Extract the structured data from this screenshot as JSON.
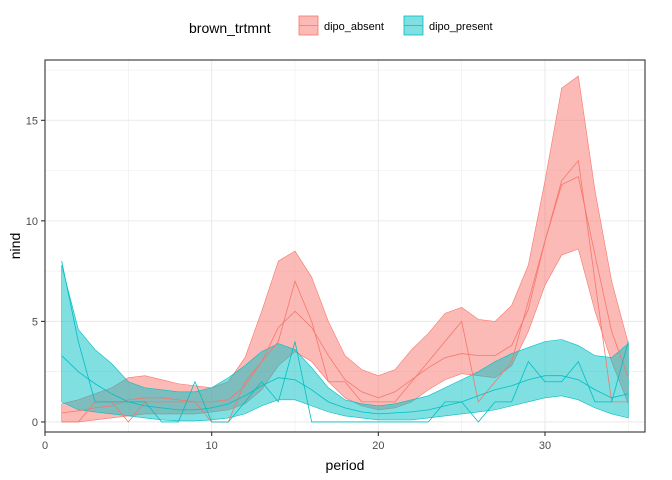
{
  "chart_data": {
    "type": "area",
    "xlabel": "period",
    "ylabel": "nind",
    "xlim": [
      0,
      36
    ],
    "ylim": [
      -0.5,
      18
    ],
    "x_ticks": [
      0,
      10,
      20,
      30
    ],
    "y_ticks": [
      0,
      5,
      10,
      15
    ],
    "grid": true,
    "legend": {
      "title": "brown_trtmnt",
      "position": "top",
      "entries": [
        "dipo_absent",
        "dipo_present"
      ]
    },
    "x": [
      1,
      2,
      3,
      4,
      5,
      6,
      7,
      8,
      9,
      10,
      11,
      12,
      13,
      14,
      15,
      16,
      17,
      18,
      19,
      20,
      21,
      22,
      23,
      24,
      25,
      26,
      27,
      28,
      29,
      30,
      31,
      32,
      33,
      34,
      35
    ],
    "series": [
      {
        "name": "dipo_absent",
        "color": "#F8766D",
        "ribbon_upper": [
          0.9,
          1.1,
          1.4,
          1.7,
          2.2,
          2.3,
          2.1,
          1.9,
          1.8,
          1.7,
          2.0,
          3.2,
          5.5,
          8.0,
          8.5,
          7.2,
          5.0,
          3.3,
          2.6,
          2.3,
          2.6,
          3.6,
          4.4,
          5.4,
          5.7,
          5.1,
          5.0,
          5.8,
          7.8,
          12.0,
          16.6,
          17.2,
          11.5,
          7.0,
          3.9
        ],
        "ribbon_lower": [
          0.0,
          0.0,
          0.1,
          0.2,
          0.3,
          0.4,
          0.4,
          0.4,
          0.4,
          0.5,
          0.6,
          0.9,
          1.6,
          2.8,
          3.5,
          3.0,
          2.0,
          1.2,
          0.8,
          0.6,
          0.7,
          1.0,
          1.6,
          2.1,
          2.4,
          2.3,
          2.2,
          2.8,
          4.5,
          6.8,
          8.3,
          8.6,
          5.5,
          3.0,
          0.9
        ],
        "mean": [
          0.45,
          0.55,
          0.7,
          0.8,
          1.1,
          1.2,
          1.2,
          1.1,
          1.0,
          1.0,
          1.1,
          1.8,
          3.0,
          4.7,
          5.5,
          4.7,
          3.3,
          2.1,
          1.5,
          1.2,
          1.5,
          2.1,
          2.7,
          3.2,
          3.4,
          3.3,
          3.3,
          3.8,
          5.6,
          9.0,
          11.8,
          12.2,
          8.3,
          4.5,
          2.2
        ],
        "observed": [
          0,
          0,
          1,
          1,
          0,
          1,
          1,
          1,
          1,
          0,
          0,
          2,
          3,
          4,
          7,
          5,
          2,
          2,
          1,
          1,
          1,
          2,
          3,
          4,
          5,
          1,
          2,
          3,
          6,
          9,
          12,
          13,
          7,
          1,
          1
        ]
      },
      {
        "name": "dipo_present",
        "color": "#00BFC4",
        "ribbon_upper": [
          7.8,
          4.6,
          3.6,
          2.9,
          2.0,
          1.7,
          1.6,
          1.5,
          1.5,
          1.7,
          2.2,
          2.8,
          3.5,
          3.9,
          3.6,
          2.7,
          1.7,
          1.1,
          0.9,
          0.8,
          0.9,
          1.1,
          1.3,
          1.7,
          2.1,
          2.5,
          3.0,
          3.4,
          3.7,
          4.0,
          4.1,
          3.8,
          3.3,
          3.2,
          3.9
        ],
        "ribbon_lower": [
          1.0,
          0.6,
          0.5,
          0.4,
          0.3,
          0.2,
          0.1,
          0.05,
          0.05,
          0.1,
          0.2,
          0.4,
          0.8,
          1.1,
          1.1,
          0.8,
          0.5,
          0.3,
          0.2,
          0.1,
          0.1,
          0.1,
          0.2,
          0.3,
          0.4,
          0.5,
          0.6,
          0.8,
          1.0,
          1.2,
          1.3,
          1.1,
          0.7,
          0.4,
          0.2
        ],
        "mean": [
          3.3,
          2.5,
          1.9,
          1.4,
          1.0,
          0.8,
          0.7,
          0.6,
          0.6,
          0.7,
          0.9,
          1.3,
          1.8,
          2.2,
          2.1,
          1.6,
          1.0,
          0.7,
          0.5,
          0.4,
          0.45,
          0.5,
          0.6,
          0.8,
          1.0,
          1.3,
          1.6,
          1.8,
          2.1,
          2.3,
          2.3,
          2.1,
          1.6,
          1.2,
          1.4
        ],
        "observed": [
          8,
          4,
          1,
          1,
          1,
          1,
          0,
          0,
          2,
          0,
          0,
          1,
          2,
          1,
          4,
          0,
          0,
          0,
          0,
          0,
          0,
          0,
          0,
          1,
          1,
          0,
          1,
          1,
          3,
          2,
          2,
          3,
          1,
          1,
          4
        ]
      }
    ]
  }
}
